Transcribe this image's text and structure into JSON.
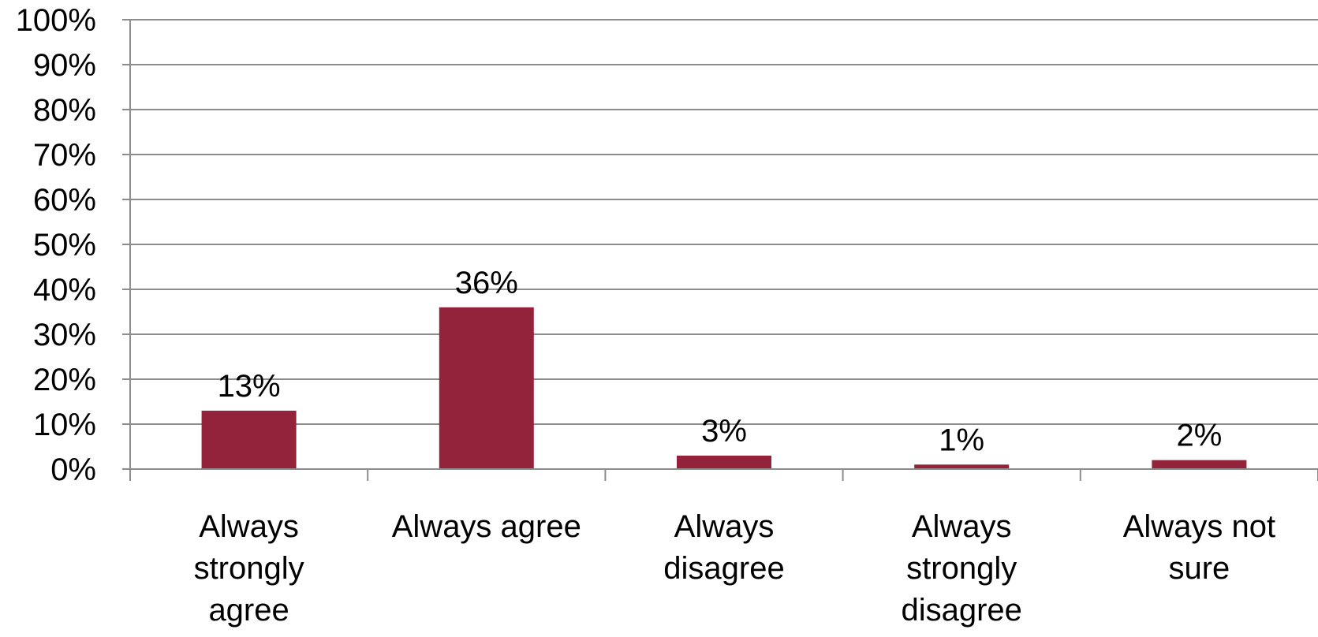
{
  "chart_data": {
    "type": "bar",
    "categories": [
      [
        "Always",
        "strongly",
        "agree"
      ],
      [
        "Always agree"
      ],
      [
        "Always",
        "disagree"
      ],
      [
        "Always",
        "strongly",
        "disagree"
      ],
      [
        "Always not",
        "sure"
      ]
    ],
    "values": [
      13,
      36,
      3,
      1,
      2
    ],
    "data_labels": [
      "13%",
      "36%",
      "3%",
      "1%",
      "2%"
    ],
    "ylim": [
      0,
      100
    ],
    "yticks": [
      0,
      10,
      20,
      30,
      40,
      50,
      60,
      70,
      80,
      90,
      100
    ],
    "ytick_labels": [
      "0%",
      "10%",
      "20%",
      "30%",
      "40%",
      "50%",
      "60%",
      "70%",
      "80%",
      "90%",
      "100%"
    ],
    "title": "",
    "xlabel": "",
    "ylabel": "",
    "grid": true,
    "legend": "none",
    "colors": {
      "bar": "#93233B",
      "gridline": "#8C8C8C",
      "axis": "#8C8C8C",
      "text": "#000000"
    }
  }
}
